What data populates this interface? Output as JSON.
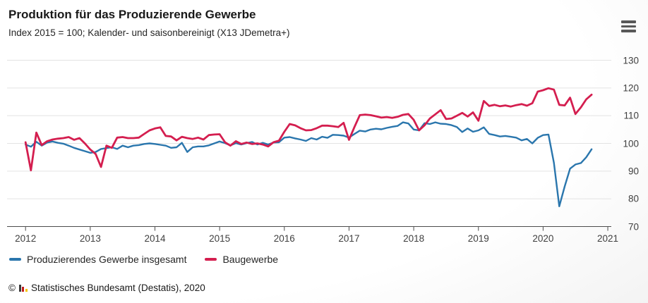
{
  "header": {
    "title": "Produktion für das Produzierende Gewerbe",
    "subtitle": "Index 2015 = 100; Kalender- und saisonbereinigt (X13 JDemetra+)"
  },
  "menu": {
    "icon": "hamburger-icon"
  },
  "y_axis": {
    "tick_labels": [
      "130",
      "120",
      "110",
      "100",
      "90",
      "80",
      "70"
    ]
  },
  "x_axis": {
    "tick_labels": [
      "2012",
      "2013",
      "2014",
      "2015",
      "2016",
      "2017",
      "2018",
      "2019",
      "2020",
      "2021"
    ]
  },
  "legend": {
    "items": [
      {
        "label": "Produzierendes Gewerbe insgesamt",
        "color": "#2a76ad"
      },
      {
        "label": "Baugewerbe",
        "color": "#d41e4f"
      }
    ]
  },
  "footer": {
    "copyright": "©",
    "logo": "destatis-bars-icon",
    "text": "Statistisches Bundesamt (Destatis), 2020"
  },
  "colors": {
    "blue": "#2a76ad",
    "red": "#d41e4f",
    "grid": "#e3e3e3",
    "axis": "#4c4c4c",
    "label": "#3f3f3f"
  },
  "chart_data": {
    "type": "line",
    "title": "Produktion für das Produzierende Gewerbe",
    "subtitle": "Index 2015 = 100; Kalender- und saisonbereinigt (X13 JDemetra+)",
    "xlabel": "",
    "ylabel": "",
    "ylim": [
      70,
      131.5
    ],
    "y_ticks": [
      70,
      80,
      90,
      100,
      110,
      120,
      130
    ],
    "x_ticks_years": [
      2012,
      2013,
      2014,
      2015,
      2016,
      2017,
      2018,
      2019,
      2020,
      2021
    ],
    "grid": "horizontal",
    "legend_position": "bottom-left",
    "x": [
      "2012-01",
      "2012-02",
      "2012-03",
      "2012-04",
      "2012-05",
      "2012-06",
      "2012-07",
      "2012-08",
      "2012-09",
      "2012-10",
      "2012-11",
      "2012-12",
      "2013-01",
      "2013-02",
      "2013-03",
      "2013-04",
      "2013-05",
      "2013-06",
      "2013-07",
      "2013-08",
      "2013-09",
      "2013-10",
      "2013-11",
      "2013-12",
      "2014-01",
      "2014-02",
      "2014-03",
      "2014-04",
      "2014-05",
      "2014-06",
      "2014-07",
      "2014-08",
      "2014-09",
      "2014-10",
      "2014-11",
      "2014-12",
      "2015-01",
      "2015-02",
      "2015-03",
      "2015-04",
      "2015-05",
      "2015-06",
      "2015-07",
      "2015-08",
      "2015-09",
      "2015-10",
      "2015-11",
      "2015-12",
      "2016-01",
      "2016-02",
      "2016-03",
      "2016-04",
      "2016-05",
      "2016-06",
      "2016-07",
      "2016-08",
      "2016-09",
      "2016-10",
      "2016-11",
      "2016-12",
      "2017-01",
      "2017-02",
      "2017-03",
      "2017-04",
      "2017-05",
      "2017-06",
      "2017-07",
      "2017-08",
      "2017-09",
      "2017-10",
      "2017-11",
      "2017-12",
      "2018-01",
      "2018-02",
      "2018-03",
      "2018-04",
      "2018-05",
      "2018-06",
      "2018-07",
      "2018-08",
      "2018-09",
      "2018-10",
      "2018-11",
      "2018-12",
      "2019-01",
      "2019-02",
      "2019-03",
      "2019-04",
      "2019-05",
      "2019-06",
      "2019-07",
      "2019-08",
      "2019-09",
      "2019-10",
      "2019-11",
      "2019-12",
      "2020-01",
      "2020-02",
      "2020-03",
      "2020-04",
      "2020-05",
      "2020-06",
      "2020-07",
      "2020-08",
      "2020-09",
      "2020-10"
    ],
    "series": [
      {
        "name": "Produzierendes Gewerbe insgesamt",
        "color": "#2a76ad",
        "values": [
          99.6,
          98.8,
          100.6,
          99.2,
          100.3,
          100.7,
          100.2,
          99.9,
          99.2,
          98.4,
          97.8,
          97.2,
          96.6,
          96.9,
          98.0,
          98.3,
          98.6,
          98.0,
          99.2,
          98.6,
          99.2,
          99.4,
          99.8,
          100.0,
          99.8,
          99.5,
          99.2,
          98.4,
          98.6,
          100.2,
          96.9,
          98.6,
          98.9,
          98.9,
          99.3,
          100.0,
          100.7,
          100.1,
          99.3,
          100.1,
          99.6,
          100.1,
          100.5,
          99.6,
          100.2,
          99.6,
          100.3,
          100.4,
          102.1,
          102.3,
          101.8,
          101.4,
          100.9,
          101.9,
          101.4,
          102.4,
          102.0,
          103.1,
          103.0,
          102.8,
          102.1,
          103.4,
          104.6,
          104.3,
          105.0,
          105.3,
          105.1,
          105.6,
          106.0,
          106.3,
          107.6,
          107.2,
          105.0,
          104.7,
          107.3,
          107.0,
          107.6,
          107.1,
          107.0,
          106.6,
          105.9,
          104.1,
          105.4,
          104.2,
          104.7,
          105.8,
          103.4,
          103.0,
          102.5,
          102.7,
          102.4,
          102.1,
          101.1,
          101.6,
          100.0,
          102.0,
          103.0,
          103.2,
          93.0,
          77.3,
          84.5,
          90.9,
          92.4,
          92.9,
          95.0,
          97.9
        ]
      },
      {
        "name": "Baugewerbe",
        "color": "#d41e4f",
        "values": [
          100.4,
          90.3,
          103.9,
          99.4,
          100.8,
          101.4,
          101.7,
          101.9,
          102.3,
          101.3,
          101.9,
          100.0,
          97.8,
          96.2,
          91.5,
          99.2,
          98.4,
          102.1,
          102.3,
          101.9,
          101.9,
          102.1,
          103.4,
          104.7,
          105.4,
          105.8,
          102.7,
          102.5,
          101.1,
          102.4,
          101.9,
          101.6,
          102.1,
          101.4,
          103.0,
          103.2,
          103.3,
          100.4,
          99.2,
          100.8,
          99.8,
          100.3,
          99.8,
          100.0,
          99.6,
          98.9,
          100.4,
          101.0,
          104.2,
          107.0,
          106.5,
          105.5,
          104.7,
          104.8,
          105.5,
          106.4,
          106.4,
          106.2,
          105.9,
          107.4,
          101.3,
          105.9,
          110.2,
          110.4,
          110.2,
          109.8,
          109.3,
          109.5,
          109.2,
          109.6,
          110.3,
          110.6,
          108.5,
          104.7,
          106.5,
          109.0,
          110.5,
          112.0,
          108.8,
          109.0,
          110.0,
          111.0,
          109.7,
          111.2,
          108.2,
          115.3,
          113.5,
          113.9,
          113.4,
          113.7,
          113.3,
          113.8,
          114.2,
          113.6,
          114.5,
          118.7,
          119.2,
          119.9,
          119.4,
          113.9,
          113.7,
          116.5,
          110.6,
          113.0,
          115.9,
          117.6
        ]
      }
    ]
  }
}
